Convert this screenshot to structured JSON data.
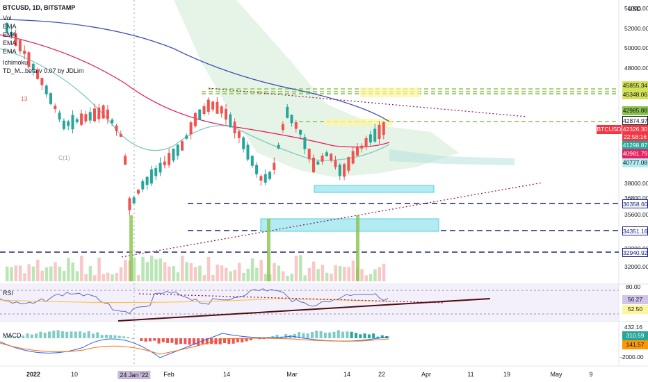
{
  "header": {
    "symbol": "BTCUSD, 1D, BITSTAMP",
    "currency": "USD"
  },
  "indicators": [
    "Vol",
    "EMA",
    "EMA",
    "EMA",
    "EMA",
    "Ichimoku",
    "TD_M...beta v 0.07 by JDLim"
  ],
  "td_labels": {
    "red13": "13",
    "c1": "C(1)"
  },
  "colors": {
    "up": "#26a69a",
    "down": "#ef5350",
    "ema_blue": "#3f51b5",
    "ema_pink": "#e91e63",
    "ema_teal": "#80cbc4",
    "dashed_green": "#8bc34a",
    "dashed_blue": "#1a237e",
    "cyan_box": "#b2ebf2",
    "yellow_box": "#fff59d"
  },
  "price_axis": {
    "labels": [
      "54000.00",
      "52000.00",
      "50000.00",
      "48000.00",
      "38000.00",
      "36800.00",
      "35600.00",
      "33200.00",
      "32000.00"
    ],
    "tags": [
      {
        "text": "45855.34",
        "bg": "#d4e157",
        "fg": "#131722"
      },
      {
        "text": "45348.06",
        "bg": "#d4e157",
        "fg": "#131722"
      },
      {
        "text": "42985.88",
        "bg": "#8bc34a",
        "fg": "#131722"
      },
      {
        "text": "42874.97",
        "bg": "#ffffff",
        "fg": "#131722"
      },
      {
        "text": "42326.30",
        "bg": "#f23645",
        "fg": "#ffffff"
      },
      {
        "text": "22:58:16",
        "bg": "#f23645",
        "fg": "#ffffff"
      },
      {
        "text": "41298.87",
        "bg": "#26a69a",
        "fg": "#ffffff"
      },
      {
        "text": "40981.79",
        "bg": "#e91e63",
        "fg": "#ffffff"
      },
      {
        "text": "40777.08",
        "bg": "#b2ebf2",
        "fg": "#131722"
      },
      {
        "text": "36358.60",
        "bg": "#ffffff",
        "fg": "#1a237e"
      },
      {
        "text": "34351.16",
        "bg": "#ffffff",
        "fg": "#1a237e"
      },
      {
        "text": "32940.92",
        "bg": "#ffffff",
        "fg": "#1a237e"
      }
    ],
    "btc_tag": "BTCUSD"
  },
  "rsi": {
    "title": "RSI",
    "axis_top": "80.00",
    "value1": "56.27",
    "value2": "52.50"
  },
  "macd": {
    "title": "MACD",
    "axis_top": "432.16",
    "value1": "310.59",
    "value2": "141.57",
    "axis_bottom": "-2000.00"
  },
  "dates": [
    "2022",
    "10",
    "24 Jan '22",
    "Feb",
    "14",
    "Mar",
    "14",
    "22",
    "Apr",
    "11",
    "19",
    "May",
    "9"
  ]
}
